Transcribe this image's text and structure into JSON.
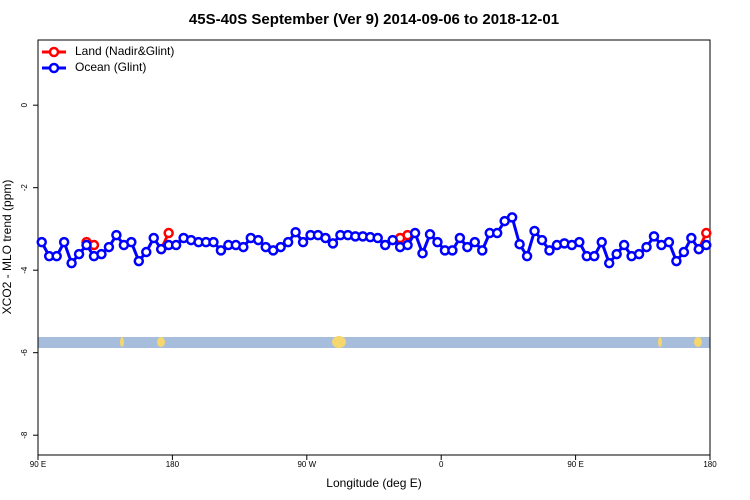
{
  "chart_data": {
    "type": "line",
    "title": "45S-40S September (Ver 9)   2014-09-06 to 2018-12-01",
    "x_label": "Longitude (deg E)",
    "y_label": "XCO2 - MLO trend (ppm)",
    "xlim": [
      90,
      540
    ],
    "ylim": [
      -8.48,
      1.58
    ],
    "xticks": [
      {
        "value": 90,
        "label": "90 E"
      },
      180,
      {
        "value": 270,
        "label": "90 W"
      },
      {
        "value": 360,
        "label": "0"
      },
      {
        "value": 450,
        "label": "90 E"
      },
      180
    ],
    "yticks": [
      0,
      -2,
      -4,
      -6,
      -8
    ],
    "legend": "top-left",
    "series": [
      {
        "name": "Land (Nadir&Glint)",
        "color": "#ff0000",
        "x": [
          122.5,
          127.5,
          130,
          172.5,
          177.5,
          300,
          332.5,
          337.5,
          400,
          532.5,
          537.5
        ],
        "values": [
          -3.32,
          -3.39,
          null,
          -3.49,
          -3.1,
          null,
          -3.22,
          -3.15,
          null,
          -3.49,
          -3.1
        ]
      },
      {
        "name": "Ocean (Glint)",
        "color": "#0000ff",
        "x": [
          92.5,
          97.5,
          102.5,
          107.5,
          112.5,
          117.5,
          122.5,
          127.5,
          132.5,
          137.5,
          142.5,
          147.5,
          152.5,
          157.5,
          162.5,
          167.5,
          172.5,
          177.5,
          182.5,
          187.5,
          192.5,
          197.5,
          202.5,
          207.5,
          212.5,
          217.5,
          222.5,
          227.5,
          232.5,
          237.5,
          242.5,
          247.5,
          252.5,
          257.5,
          262.5,
          267.5,
          272.5,
          277.5,
          282.5,
          287.5,
          292.5,
          297.5,
          302.5,
          307.5,
          312.5,
          317.5,
          322.5,
          327.5,
          332.5,
          337.5,
          342.5,
          347.5,
          352.5,
          357.5,
          362.5,
          367.5,
          372.5,
          377.5,
          382.5,
          387.5,
          392.5,
          397.5,
          402.5,
          407.5,
          412.5,
          417.5,
          422.5,
          427.5,
          432.5,
          437.5,
          442.5,
          447.5,
          452.5,
          457.5,
          462.5,
          467.5,
          472.5,
          477.5,
          482.5,
          487.5,
          492.5,
          497.5,
          502.5,
          507.5,
          512.5,
          517.5,
          522.5,
          527.5,
          532.5,
          537.5
        ],
        "values": [
          -3.32,
          -3.66,
          -3.66,
          -3.32,
          -3.83,
          -3.61,
          -3.39,
          -3.66,
          -3.61,
          -3.44,
          -3.15,
          -3.39,
          -3.32,
          -3.78,
          -3.56,
          -3.22,
          -3.49,
          -3.39,
          -3.39,
          -3.22,
          -3.27,
          -3.32,
          -3.32,
          -3.32,
          -3.52,
          -3.39,
          -3.39,
          -3.44,
          -3.22,
          -3.27,
          -3.44,
          -3.52,
          -3.44,
          -3.32,
          -3.08,
          -3.32,
          -3.15,
          -3.15,
          -3.22,
          -3.35,
          -3.15,
          -3.15,
          -3.18,
          -3.18,
          -3.2,
          -3.22,
          -3.39,
          -3.27,
          -3.44,
          -3.39,
          -3.1,
          -3.59,
          -3.13,
          -3.32,
          -3.52,
          -3.52,
          -3.22,
          -3.44,
          -3.32,
          -3.52,
          -3.1,
          -3.1,
          -2.81,
          -2.72,
          -3.37,
          -3.66,
          -3.05,
          -3.27,
          -3.52,
          -3.39,
          -3.35,
          -3.39,
          -3.32,
          -3.66,
          -3.66,
          -3.32,
          -3.83,
          -3.61,
          -3.39,
          -3.66,
          -3.61,
          -3.44,
          -3.18,
          -3.39,
          -3.32,
          -3.78,
          -3.56,
          -3.22,
          -3.49,
          -3.39
        ]
      }
    ]
  }
}
